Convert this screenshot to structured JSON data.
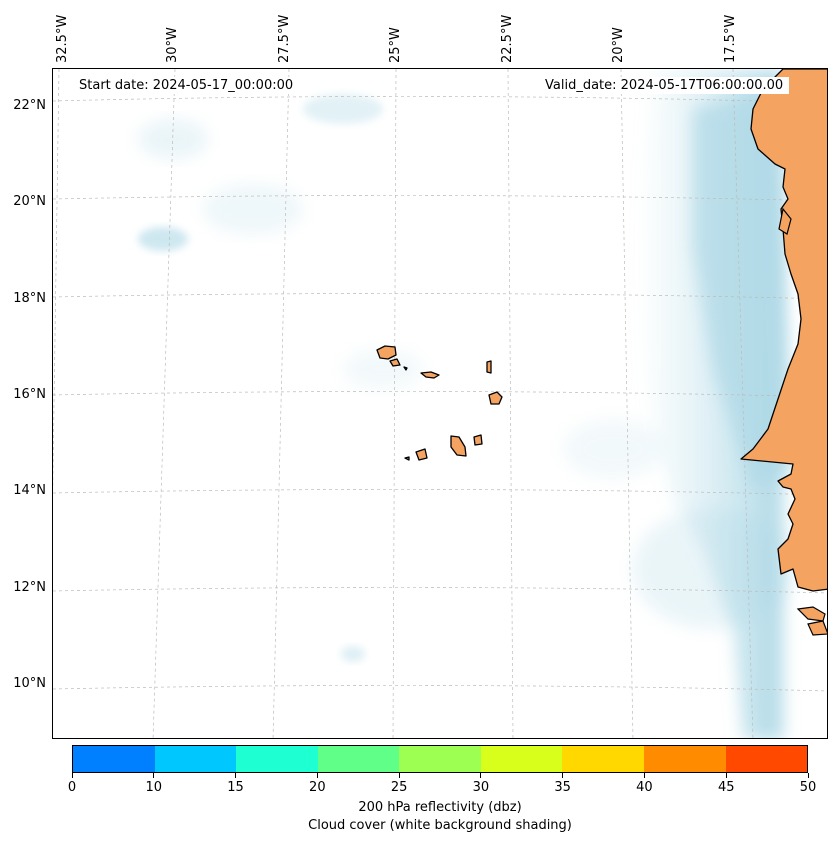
{
  "header": {
    "start_date": "Start date: 2024-05-17_00:00:00",
    "valid_date": "Valid_date: 2024-05-17T06:00:00.00"
  },
  "map": {
    "lon_labels": [
      "32.5°W",
      "30°W",
      "27.5°W",
      "25°W",
      "22.5°W",
      "20°W",
      "17.5°W"
    ],
    "lat_labels": [
      "22°N",
      "20°N",
      "18°N",
      "16°N",
      "14°N",
      "12°N",
      "10°N"
    ],
    "colors": {
      "land": "#f4a460",
      "cloud": "#add8e6",
      "coastline": "#000000",
      "gridline": "#bbbbbb"
    },
    "extent": {
      "lon": [
        -33,
        -16.5
      ],
      "lat": [
        9,
        23
      ]
    },
    "island_group": "Cabo Verde islands"
  },
  "colorbar": {
    "ticks": [
      "0",
      "10",
      "15",
      "20",
      "25",
      "30",
      "35",
      "40",
      "45",
      "50"
    ],
    "colors": [
      "#0080ff",
      "#00c8ff",
      "#1effd2",
      "#60ff88",
      "#9cff52",
      "#d8ff1c",
      "#ffd800",
      "#ff8c00",
      "#ff4800"
    ],
    "label": "200 hPa reflectivity (dbz)",
    "sublabel": "Cloud cover (white background shading)"
  }
}
